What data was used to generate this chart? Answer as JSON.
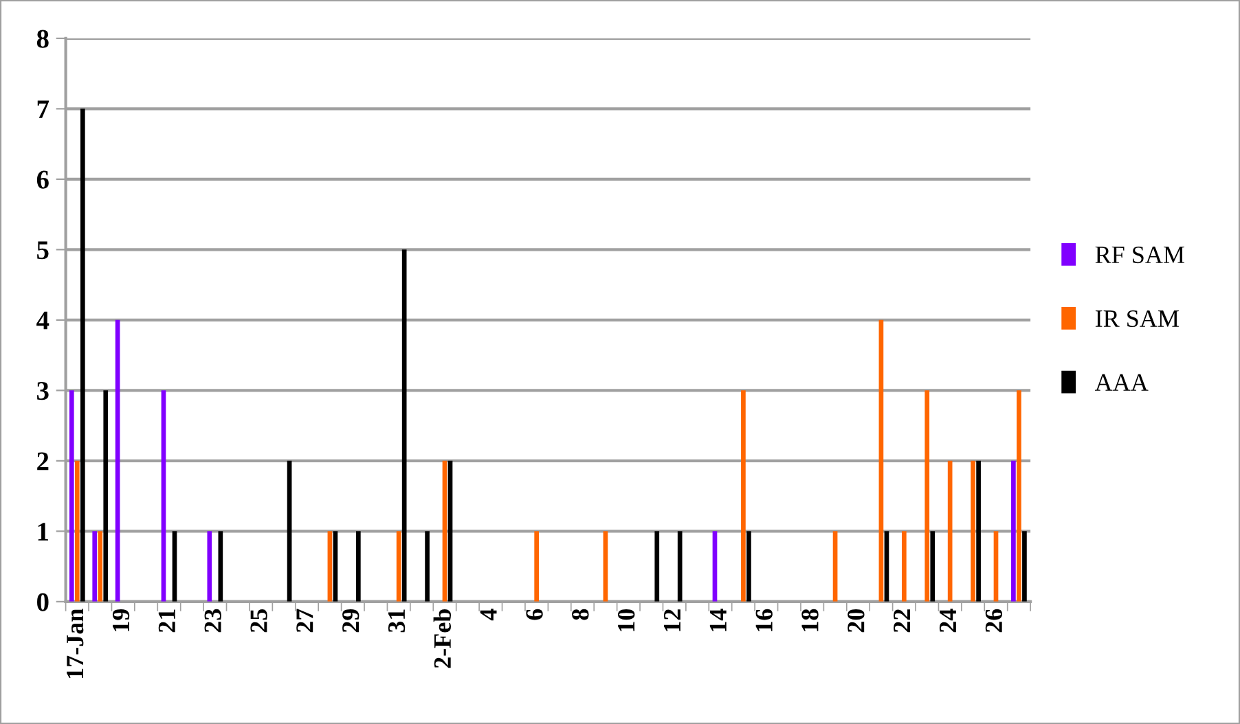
{
  "chart_data": {
    "type": "bar",
    "categories": [
      "17-Jan",
      null,
      "19",
      null,
      "21",
      null,
      "23",
      null,
      "25",
      null,
      "27",
      null,
      "29",
      null,
      "31",
      null,
      "2-Feb",
      null,
      "4",
      null,
      "6",
      null,
      "8",
      null,
      "10",
      null,
      "12",
      null,
      "14",
      null,
      "16",
      null,
      "18",
      null,
      "20",
      null,
      "22",
      null,
      "24",
      null,
      "26",
      null
    ],
    "series": [
      {
        "name": "RF SAM",
        "color": "#8000ff",
        "values": [
          3,
          1,
          4,
          0,
          3,
          0,
          1,
          0,
          0,
          0,
          0,
          0,
          0,
          0,
          0,
          0,
          0,
          0,
          0,
          0,
          0,
          0,
          0,
          0,
          0,
          0,
          0,
          0,
          1,
          0,
          0,
          0,
          0,
          0,
          0,
          0,
          0,
          0,
          0,
          0,
          0,
          2
        ]
      },
      {
        "name": "IR SAM",
        "color": "#ff6600",
        "values": [
          2,
          1,
          0,
          0,
          0,
          0,
          0,
          0,
          0,
          0,
          0,
          1,
          0,
          0,
          1,
          0,
          2,
          0,
          0,
          0,
          1,
          0,
          0,
          1,
          0,
          0,
          0,
          0,
          0,
          3,
          0,
          0,
          0,
          1,
          0,
          4,
          1,
          3,
          2,
          2,
          1,
          3
        ]
      },
      {
        "name": "AAA",
        "color": "#000000",
        "values": [
          7,
          3,
          0,
          0,
          1,
          0,
          1,
          0,
          0,
          2,
          0,
          1,
          1,
          0,
          5,
          1,
          2,
          0,
          0,
          0,
          0,
          0,
          0,
          0,
          0,
          1,
          1,
          0,
          0,
          1,
          0,
          0,
          0,
          0,
          0,
          1,
          0,
          1,
          0,
          2,
          0,
          1
        ]
      }
    ],
    "ylim": [
      0,
      8
    ],
    "yticks": [
      0,
      1,
      2,
      3,
      4,
      5,
      6,
      7,
      8
    ],
    "grid": "y",
    "legend": "right"
  }
}
